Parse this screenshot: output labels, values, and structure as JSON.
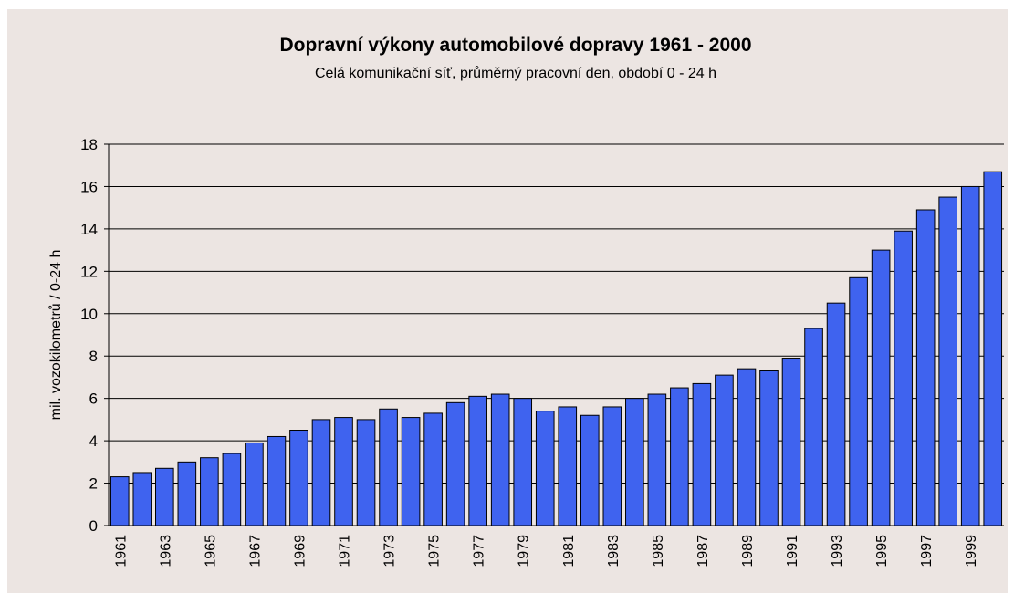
{
  "chart_data": {
    "type": "bar",
    "title": "Dopravní výkony automobilové dopravy 1961 - 2000",
    "subtitle": "Celá komunikační síť, průměrný pracovní den, období 0 - 24 h",
    "y_label": "mil. vozokilometrů / 0-24 h",
    "categories": [
      "1961",
      null,
      "1963",
      null,
      "1965",
      null,
      "1967",
      null,
      "1969",
      null,
      "1971",
      null,
      "1973",
      null,
      "1975",
      null,
      "1977",
      null,
      "1979",
      null,
      "1981",
      null,
      "1983",
      null,
      "1985",
      null,
      "1987",
      null,
      "1989",
      null,
      "1991",
      null,
      "1993",
      null,
      "1995",
      null,
      "1997",
      null,
      "1999",
      null
    ],
    "values": [
      2.3,
      2.5,
      2.7,
      3.0,
      3.2,
      3.4,
      3.9,
      4.2,
      4.5,
      5.0,
      5.1,
      5.0,
      5.5,
      5.1,
      5.3,
      5.8,
      6.1,
      6.2,
      6.0,
      5.4,
      5.6,
      5.2,
      5.6,
      6.0,
      6.2,
      6.5,
      6.7,
      7.1,
      7.4,
      7.3,
      7.9,
      9.3,
      10.5,
      11.7,
      13.0,
      13.9,
      14.9,
      15.5,
      16.0,
      16.7
    ],
    "color": "#3f63ef",
    "ylim": [
      0,
      18
    ],
    "yticks": [
      0,
      2,
      4,
      6,
      8,
      10,
      12,
      14,
      16,
      18
    ],
    "grid": true
  }
}
